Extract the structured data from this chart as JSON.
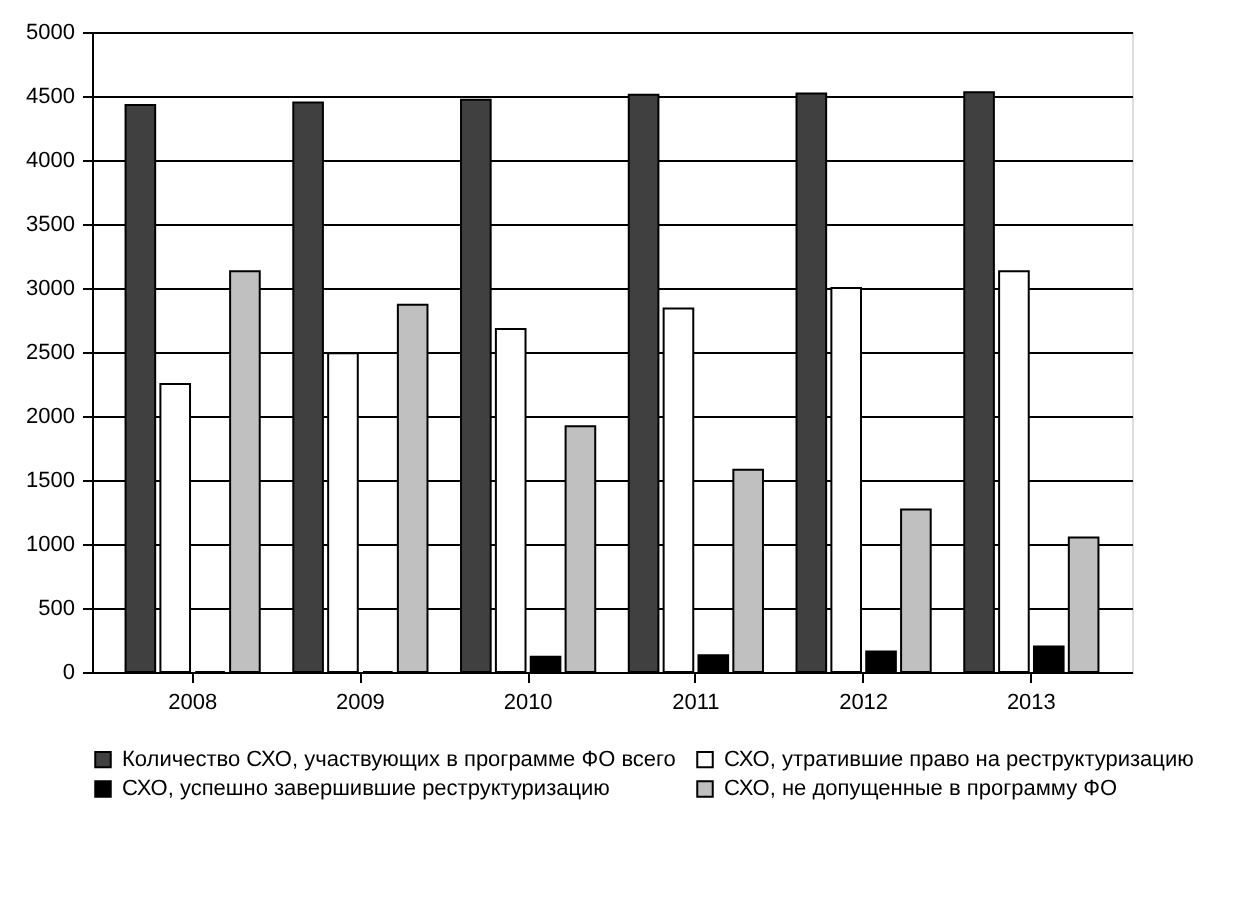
{
  "chart_data": {
    "type": "bar",
    "categories": [
      "2008",
      "2009",
      "2010",
      "2011",
      "2012",
      "2013"
    ],
    "series": [
      {
        "name": "Количество СХО, участвующих в программе ФО всего",
        "color": "#404040",
        "values": [
          4430,
          4450,
          4470,
          4510,
          4520,
          4530
        ]
      },
      {
        "name": "СХО, утратившие право на реструктуризацию",
        "color": "#ffffff",
        "values": [
          2250,
          2490,
          2680,
          2840,
          3000,
          3130
        ]
      },
      {
        "name": "СХО, успешно завершившие реструктуризацию",
        "color": "#000000",
        "values": [
          0,
          0,
          120,
          130,
          160,
          200
        ]
      },
      {
        "name": "СХО, не допущенные в программу ФО",
        "color": "#c0c0c0",
        "values": [
          3130,
          2870,
          1920,
          1580,
          1270,
          1050
        ]
      }
    ],
    "ylim": [
      0,
      5000
    ],
    "yticks": [
      0,
      500,
      1000,
      1500,
      2000,
      2500,
      3000,
      3500,
      4000,
      4500,
      5000
    ],
    "grid": "y",
    "legend": "bottom"
  }
}
